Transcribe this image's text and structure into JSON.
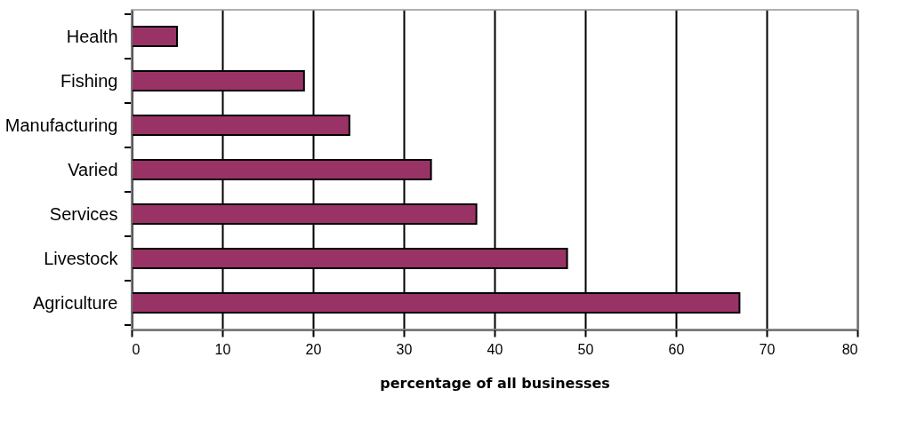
{
  "chart_data": {
    "type": "bar",
    "orientation": "horizontal",
    "xlabel": "percentage of all businesses",
    "categories": [
      "Health",
      "Fishing",
      "Manufacturing",
      "Varied",
      "Services",
      "Livestock",
      "Agriculture"
    ],
    "values": [
      5,
      19,
      24,
      33,
      38,
      48,
      67
    ],
    "color": "#993366",
    "xlim": [
      0,
      80
    ],
    "xticks": [
      0,
      10,
      20,
      30,
      40,
      50,
      60,
      70,
      80
    ],
    "grid": "x"
  }
}
